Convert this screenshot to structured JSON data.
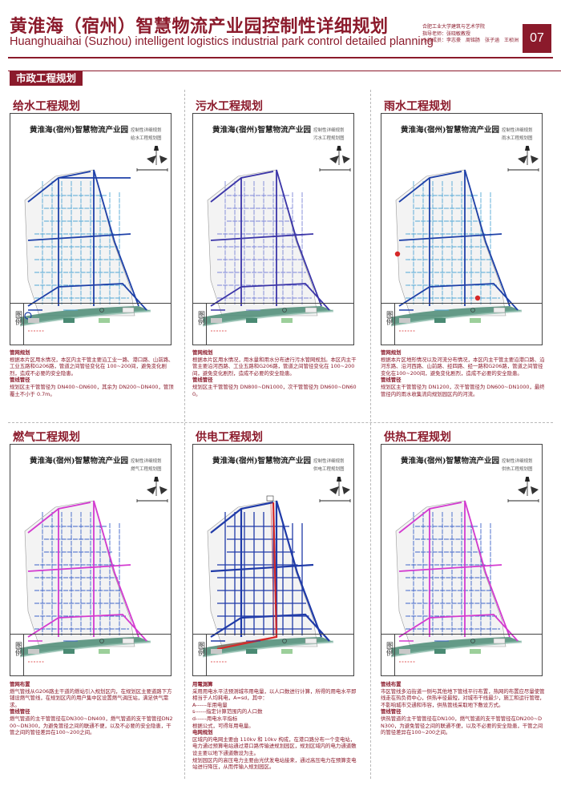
{
  "header": {
    "title_cn": "黄淮海（宿州）智慧物流产业园控制性详细规划",
    "title_en": "Huanghuaihai (Suzhou) intelligent logistics industrial park control detailed planning",
    "credits": [
      "合肥工业大学建筑与艺术学院",
      "指导老师：张晓敏教授",
      "小组成员：李志豪　周铭肠　张子涵　王桢洲"
    ],
    "page": "07"
  },
  "section": {
    "label": "市政工程规划"
  },
  "map_common": {
    "title": "黄淮海(宿州)智慧物流产业园",
    "subtitle": "控制性详细规划",
    "legend": "图例"
  },
  "panels": [
    {
      "title": "给水工程规划",
      "map_sub": "给水工程规划图",
      "desc": [
        "管网规划",
        "根据本片区用水情况，本区内主干管主要沿工业一路、港口路、山前路、工业五路和G206路，管道之间管径变化在 100~200间，避免变化剧烈，造成不必要的安全隐患。",
        "管线管径",
        "规划区主干管管径为 DN400~DN600，其余为 DN200~DN400，管顶覆土不小于 0.7m。"
      ]
    },
    {
      "title": "污水工程规划",
      "map_sub": "污水工程规划图",
      "desc": [
        "管网规划",
        "根据本片区用水情况，用水量和用水分布进行污水管网规划。本区内主干管主要沿河西路、工业五路和G206路，管道之间管径变化在 100~200间，避免变化剧烈，造成不必要的安全隐患。",
        "管线管径",
        "规划区主干管管径为 DN800~DN1000，次干管管径为 DN600~DN600。"
      ]
    },
    {
      "title": "雨水工程规划",
      "map_sub": "雨水工程规划图",
      "desc": [
        "管网规划",
        "根据本片区地形情况以及河流分布情况，本区内主干管主要沿港口路、沿河东路、沿河西路、山前路、经四路、经一路和G206路，管道之间管径变化在100~200间，避免变化剧烈，造成不必要的安全隐患。",
        "管线管径",
        "规划区主干管管径为 DN1200，次干管管径为 DN600~DN1000，最终管径内的雨水收集流向规划园区内的河流。"
      ]
    },
    {
      "title": "燃气工程规划",
      "map_sub": "燃气工程规划图",
      "desc": [
        "管网布置",
        "燃气管线从G206路主干道的燃站引入规划区内，在规划区主要道路下方铺设燃气管线，在规划区内的用户集中区设置燃气调压站，满足供气需求。",
        "管线管径",
        "燃气管道的主干管管径在DN300~DN400，燃气管道的支干管管径DN200~DN300，为避免管径之间的联通不便，以及不必要的安全隐患，干管之间的管径差异在100~200之间。"
      ]
    },
    {
      "title": "供电工程规划",
      "map_sub": "供电工程规划图",
      "desc": [
        "用電測算",
        "采用用电水平法预测城市用电量，以人口数进行计算，所得的用电水平即相当于人均耗电，A=sd，其中：",
        "A------年用电量",
        "s------指定计算范围内的人口数",
        "d------用电水平指标",
        "根据公式，可得年用电量。",
        "电网规划",
        "区域内的电网主要由 110kv 和 10kv 构成，在港口路分布一个变电站，电力通过预算电站通过港口路传输进规划园区，规划区域内的电力通道敷设主要以地下通道敷设为主。",
        "规划园区内的高压电力主要由光伏发电站接来，通过高压电力在预算变电站进行降压，从而传输入规划园区。"
      ]
    },
    {
      "title": "供热工程规划",
      "map_sub": "供热工程规划图",
      "desc": [
        "管线布置",
        "市区管线多沿街道一侧与其他地下管线平行布置，热网的布置应尽量使管线走在热负荷中心，供热半径最短，对城市干线最少，施工和运行管理，不影响城市交通和市容，供热管线采取地下敷设方式。",
        "管线管径",
        "供热管道的主干管管径在DN100，燃气管道的支干管管径在DN200~DN300，为避免管径之间的联通不便，以及不必要的安全隐患，干管之间的管径差异在100~200之间。"
      ]
    }
  ],
  "colors": {
    "brand": "#8b1a2b",
    "water": "#1e40a8",
    "water_light": "#52a7d6",
    "sewage": "#3b35a8",
    "sewage_light": "#7c86d8",
    "rain": "#1e40a8",
    "gas": "#d33ad0",
    "power": "#1f3aa8",
    "power_hv": "#d62828",
    "heat": "#d33ad0",
    "heat_branch": "#3c63c8",
    "river": "#4a8a73"
  }
}
